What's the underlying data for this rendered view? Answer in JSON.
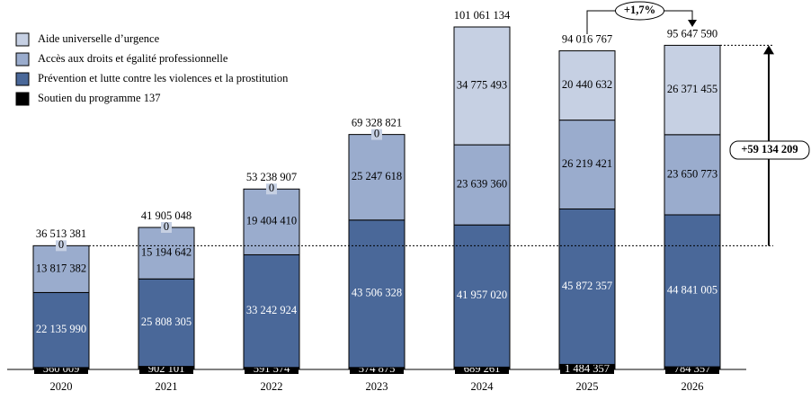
{
  "chart_data": {
    "type": "stacked_bar",
    "categories": [
      "2020",
      "2021",
      "2022",
      "2023",
      "2024",
      "2025",
      "2026"
    ],
    "series": [
      {
        "name": "Soutien du programme 137",
        "color": "#000000",
        "values": [
          560009,
          902101,
          591574,
          574875,
          689261,
          1484357,
          784357
        ],
        "value_labels": [
          "560 009",
          "902 101",
          "591 574",
          "574 875",
          "689 261",
          "1 484 357",
          "784 357"
        ]
      },
      {
        "name": "Prévention et lutte contre les violences et la prostitution",
        "color": "#4a6899",
        "values": [
          22135990,
          25808305,
          33242924,
          43506328,
          41957020,
          45872357,
          44841005
        ],
        "value_labels": [
          "22 135 990",
          "25 808 305",
          "33 242 924",
          "43 506 328",
          "41 957 020",
          "45 872 357",
          "44 841 005"
        ]
      },
      {
        "name": "Accès aux droits et égalité professionnelle",
        "color": "#9aaccd",
        "values": [
          13817382,
          15194642,
          19404410,
          25247618,
          23639360,
          26219421,
          23650773
        ],
        "value_labels": [
          "13 817 382",
          "15 194 642",
          "19 404 410",
          "25 247 618",
          "23 639 360",
          "26 219 421",
          "23 650 773"
        ]
      },
      {
        "name": "Aide universelle d’urgence",
        "color": "#c6d0e3",
        "values": [
          0,
          0,
          0,
          0,
          34775493,
          20440632,
          26371455
        ],
        "value_labels": [
          "0",
          "0",
          "0",
          "0",
          "34 775 493",
          "20 440 632",
          "26 371 455"
        ]
      }
    ],
    "totals": [
      36513381,
      41905048,
      53238907,
      69328821,
      101061134,
      94016767,
      95647590
    ],
    "totals_labels": [
      "36 513 381",
      "41 905 048",
      "53 238 907",
      "69 328 821",
      "101 061 134",
      "94 016 767",
      "95 647 590"
    ],
    "annotations": [
      "+1,7%",
      "+59 134 209"
    ]
  }
}
